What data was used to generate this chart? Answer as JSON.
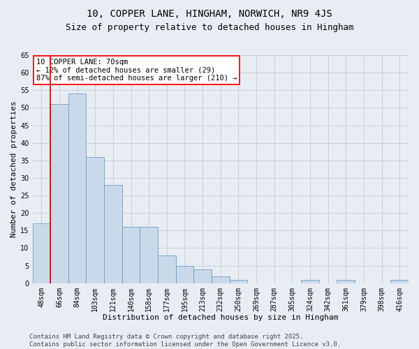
{
  "title1": "10, COPPER LANE, HINGHAM, NORWICH, NR9 4JS",
  "title2": "Size of property relative to detached houses in Hingham",
  "xlabel": "Distribution of detached houses by size in Hingham",
  "ylabel": "Number of detached properties",
  "categories": [
    "48sqm",
    "66sqm",
    "84sqm",
    "103sqm",
    "121sqm",
    "140sqm",
    "158sqm",
    "177sqm",
    "195sqm",
    "213sqm",
    "232sqm",
    "250sqm",
    "269sqm",
    "287sqm",
    "305sqm",
    "324sqm",
    "342sqm",
    "361sqm",
    "379sqm",
    "398sqm",
    "416sqm"
  ],
  "values": [
    17,
    51,
    54,
    36,
    28,
    16,
    16,
    8,
    5,
    4,
    2,
    1,
    0,
    0,
    0,
    1,
    0,
    1,
    0,
    0,
    1
  ],
  "bar_color": "#cad9ea",
  "bar_edge_color": "#6b9dc2",
  "vline_color": "#cc0000",
  "vline_x_index": 1,
  "annotation_text": "10 COPPER LANE: 70sqm\n← 12% of detached houses are smaller (29)\n87% of semi-detached houses are larger (210) →",
  "grid_color": "#c5cfd8",
  "background_color": "#e8edf3",
  "ylim": [
    0,
    65
  ],
  "yticks": [
    0,
    5,
    10,
    15,
    20,
    25,
    30,
    35,
    40,
    45,
    50,
    55,
    60,
    65
  ],
  "footer_line1": "Contains HM Land Registry data © Crown copyright and database right 2025.",
  "footer_line2": "Contains public sector information licensed under the Open Government Licence v3.0.",
  "title1_fontsize": 10,
  "title2_fontsize": 9,
  "xlabel_fontsize": 8,
  "ylabel_fontsize": 8,
  "tick_fontsize": 7,
  "annotation_fontsize": 7.5,
  "footer_fontsize": 6.5
}
